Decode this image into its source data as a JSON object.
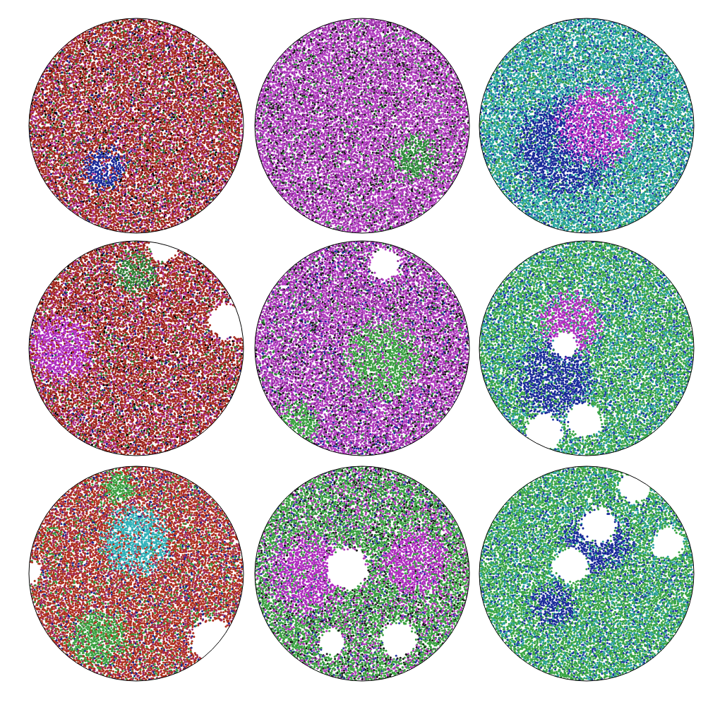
{
  "chart_data": [
    {
      "type": "scatter",
      "xlim": [
        -1,
        1
      ],
      "ylim": [
        -1,
        1
      ],
      "tick_labels": false,
      "grid": false,
      "colors": [
        "#a52a1e",
        "#b03090",
        "#8b1a1a",
        "#2e7d32",
        "#1a237e",
        "#000000"
      ],
      "patches": [
        {
          "color": "#1a2a9a",
          "x": -0.3,
          "y": -0.4,
          "r": 0.2
        }
      ],
      "holes": []
    },
    {
      "type": "scatter",
      "xlim": [
        -1,
        1
      ],
      "ylim": [
        -1,
        1
      ],
      "tick_labels": false,
      "grid": false,
      "colors": [
        "#b23cc0",
        "#8e2a9a",
        "#1a1a1a",
        "#2e8b3a",
        "#c060d0"
      ],
      "patches": [
        {
          "color": "#2e8b3a",
          "x": 0.5,
          "y": -0.3,
          "r": 0.2
        }
      ],
      "holes": []
    },
    {
      "type": "scatter",
      "xlim": [
        -1,
        1
      ],
      "ylim": [
        -1,
        1
      ],
      "tick_labels": false,
      "grid": false,
      "colors": [
        "#2aa6a0",
        "#3aa04a",
        "#1d4fb0",
        "#1a2a9a"
      ],
      "patches": [
        {
          "color": "#1a2a9a",
          "x": -0.2,
          "y": -0.2,
          "r": 0.45
        },
        {
          "color": "#b02cc0",
          "x": 0.1,
          "y": 0.0,
          "r": 0.35
        }
      ],
      "holes": []
    },
    {
      "type": "scatter",
      "xlim": [
        -1,
        1
      ],
      "ylim": [
        -1,
        1
      ],
      "tick_labels": false,
      "grid": false,
      "colors": [
        "#a52a1e",
        "#b03090",
        "#8b1a1a",
        "#2e7d32",
        "#1a237e",
        "#000000"
      ],
      "patches": [
        {
          "color": "#2e7d32",
          "x": 0.0,
          "y": 0.7,
          "r": 0.2
        },
        {
          "color": "#b02cc0",
          "x": -0.7,
          "y": 0.0,
          "r": 0.3
        }
      ],
      "holes": [
        {
          "x": 0.25,
          "y": 0.95,
          "r": 0.15
        },
        {
          "x": 0.85,
          "y": 0.25,
          "r": 0.18
        }
      ]
    },
    {
      "type": "scatter",
      "xlim": [
        -1,
        1
      ],
      "ylim": [
        -1,
        1
      ],
      "tick_labels": false,
      "grid": false,
      "colors": [
        "#b23cc0",
        "#8e2a9a",
        "#1a1a1a",
        "#2e8b3a",
        "#1a2a9a"
      ],
      "patches": [
        {
          "color": "#3aa040",
          "x": 0.2,
          "y": -0.1,
          "r": 0.35
        },
        {
          "color": "#3aa040",
          "x": -0.6,
          "y": -0.7,
          "r": 0.2
        }
      ],
      "holes": [
        {
          "x": 0.21,
          "y": 0.78,
          "r": 0.15
        }
      ]
    },
    {
      "type": "scatter",
      "xlim": [
        -1,
        1
      ],
      "ylim": [
        -1,
        1
      ],
      "tick_labels": false,
      "grid": false,
      "colors": [
        "#3aa548",
        "#2aa0a8",
        "#1e3aa8"
      ],
      "patches": [
        {
          "color": "#1a2a9a",
          "x": -0.3,
          "y": -0.3,
          "r": 0.35
        },
        {
          "color": "#b02cc0",
          "x": -0.15,
          "y": 0.22,
          "r": 0.28
        }
      ],
      "holes": [
        {
          "x": -0.2,
          "y": 0.03,
          "r": 0.12
        },
        {
          "x": -0.02,
          "y": -0.67,
          "r": 0.17
        },
        {
          "x": -0.4,
          "y": -0.78,
          "r": 0.17
        }
      ]
    },
    {
      "type": "scatter",
      "xlim": [
        -1,
        1
      ],
      "ylim": [
        -1,
        1
      ],
      "tick_labels": false,
      "grid": false,
      "colors": [
        "#b0301e",
        "#a02a60",
        "#3a9a40",
        "#1a2a8a"
      ],
      "patches": [
        {
          "color": "#30b0b8",
          "x": 0.0,
          "y": 0.3,
          "r": 0.3
        },
        {
          "color": "#3aa040",
          "x": -0.15,
          "y": 0.8,
          "r": 0.15
        },
        {
          "color": "#3aa040",
          "x": -0.35,
          "y": -0.6,
          "r": 0.25
        }
      ],
      "holes": [
        {
          "x": 0.7,
          "y": -0.61,
          "r": 0.2
        },
        {
          "x": -0.97,
          "y": 0.01,
          "r": 0.1
        }
      ]
    },
    {
      "type": "scatter",
      "xlim": [
        -1,
        1
      ],
      "ylim": [
        -1,
        1
      ],
      "tick_labels": false,
      "grid": false,
      "colors": [
        "#3aa040",
        "#b03ab8",
        "#1a1a1a",
        "#2a3aa0"
      ],
      "patches": [
        {
          "color": "#b02cc0",
          "x": -0.5,
          "y": 0.0,
          "r": 0.35
        },
        {
          "color": "#b02cc0",
          "x": 0.5,
          "y": 0.1,
          "r": 0.3
        }
      ],
      "holes": [
        {
          "x": -0.14,
          "y": 0.05,
          "r": 0.2
        },
        {
          "x": 0.34,
          "y": -0.61,
          "r": 0.17
        },
        {
          "x": -0.28,
          "y": -0.64,
          "r": 0.13
        }
      ]
    },
    {
      "type": "scatter",
      "xlim": [
        -1,
        1
      ],
      "ylim": [
        -1,
        1
      ],
      "tick_labels": false,
      "grid": false,
      "colors": [
        "#3aa545",
        "#2aa0a0",
        "#1e3aa0"
      ],
      "patches": [
        {
          "color": "#1a2a9a",
          "x": 0.1,
          "y": 0.3,
          "r": 0.3
        },
        {
          "color": "#1a2a9a",
          "x": -0.3,
          "y": -0.3,
          "r": 0.2
        }
      ],
      "holes": [
        {
          "x": 0.45,
          "y": 0.8,
          "r": 0.15
        },
        {
          "x": 0.11,
          "y": 0.44,
          "r": 0.17
        },
        {
          "x": 0.75,
          "y": 0.28,
          "r": 0.15
        },
        {
          "x": -0.15,
          "y": 0.08,
          "r": 0.17
        }
      ]
    }
  ]
}
